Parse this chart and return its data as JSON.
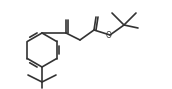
{
  "bg_color": "#ffffff",
  "line_color": "#333333",
  "line_width": 1.2,
  "figsize": [
    1.72,
    0.89
  ],
  "dpi": 100
}
